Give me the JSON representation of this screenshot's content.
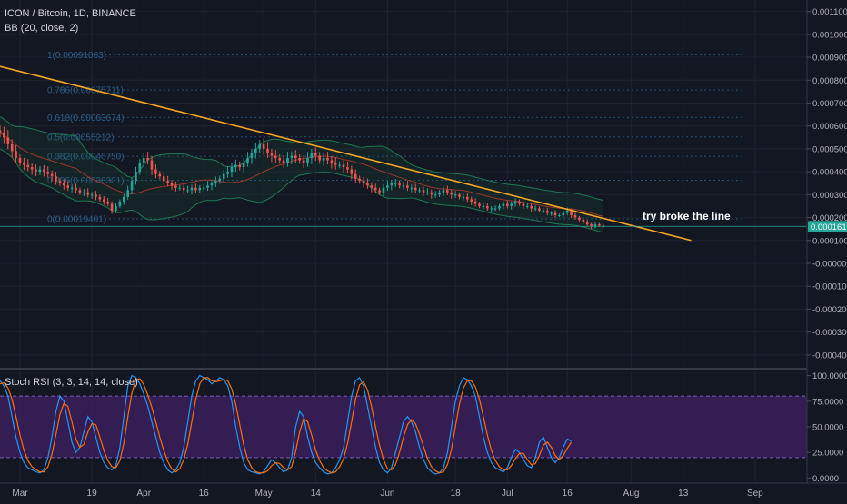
{
  "header": {
    "symbol_title": "ICON / Bitcoin, 1D, BINANCE",
    "bb_indicator": "BB (20, close, 2)",
    "rsi_indicator": "Stoch RSI (3, 3, 14, 14, close)"
  },
  "annotation": "try broke the line",
  "colors": {
    "background": "#131722",
    "up_candle": "#26a69a",
    "down_candle": "#ef5350",
    "trendline": "#f5a623",
    "bb_band": "#1b7a4e",
    "bb_basis": "#c0392b",
    "rsi_k": "#2196f3",
    "rsi_d": "#ff6d00",
    "rsi_band_fill": "#3a1f5c",
    "price_line": "#26a69a"
  },
  "chart_data": [
    {
      "type": "candlestick",
      "title": "ICON / Bitcoin, 1D, BINANCE",
      "price_axis_ticks": [
        "0.0011000",
        "0.0010000",
        "0.0009000",
        "0.0008000",
        "0.0007000",
        "0.0006000",
        "0.0005000",
        "0.0004000",
        "0.0003000",
        "0.0002000",
        "0.0001000",
        "-0.0000000",
        "-0.0001000",
        "-0.0002000",
        "-0.0003000",
        "-0.0004000"
      ],
      "price_axis_values": [
        0.0011,
        0.001,
        0.0009,
        0.0008,
        0.0007,
        0.0006,
        0.0005,
        0.0004,
        0.0003,
        0.0002,
        0.0001,
        0,
        -0.0001,
        -0.0002,
        -0.0003,
        -0.0004
      ],
      "ylim": [
        -0.00046,
        0.00115
      ],
      "current_price": "0.0001615",
      "current_price_value": 0.0001615,
      "date_ticks": [
        "Mar",
        "19",
        "Apr",
        "16",
        "May",
        "14",
        "Jun",
        "18",
        "Jul",
        "16",
        "Aug",
        "13",
        "Sep"
      ],
      "date_tick_days": [
        0,
        18,
        31,
        46,
        61,
        74,
        92,
        109,
        122,
        137,
        153,
        166,
        184
      ],
      "xlim_days": [
        -5,
        197
      ],
      "fib_levels": [
        {
          "label": "1(0.00091063)",
          "value": 0.00091063
        },
        {
          "label": "0.786(0.00075711)",
          "value": 0.00075711
        },
        {
          "label": "0.618(0.00063674)",
          "value": 0.00063674
        },
        {
          "label": "0.5(0.00055212)",
          "value": 0.00055212
        },
        {
          "label": "0.382(0.00046750)",
          "value": 0.0004675
        },
        {
          "label": "0.236(0.00036301)",
          "value": 0.00036301
        },
        {
          "label": "0(0.00019401)",
          "value": 0.00019401
        }
      ],
      "trendline": {
        "start_day": -5,
        "start_value": 0.00086,
        "end_day": 168,
        "end_value": 0.0001
      },
      "close_series": {
        "start_day": -5,
        "values": [
          0.00057,
          0.00055,
          0.00052,
          0.00049,
          0.00046,
          0.00044,
          0.00043,
          0.00042,
          0.00041,
          0.0004,
          0.00041,
          0.0004,
          0.00039,
          0.00038,
          0.00036,
          0.00035,
          0.00034,
          0.00033,
          0.00033,
          0.00032,
          0.00031,
          0.00031,
          0.0003,
          0.0003,
          0.00029,
          0.00028,
          0.00027,
          0.00026,
          0.00023,
          0.00025,
          0.00027,
          0.00029,
          0.00032,
          0.00036,
          0.0004,
          0.00044,
          0.00046,
          0.00045,
          0.00041,
          0.00039,
          0.00038,
          0.00036,
          0.00035,
          0.00034,
          0.00033,
          0.00033,
          0.00032,
          0.00032,
          0.00033,
          0.00032,
          0.00033,
          0.00033,
          0.00034,
          0.00035,
          0.00036,
          0.00037,
          0.00039,
          0.0004,
          0.00042,
          0.00043,
          0.00042,
          0.00044,
          0.00046,
          0.00048,
          0.0005,
          0.00052,
          0.0005,
          0.00048,
          0.00047,
          0.00046,
          0.00045,
          0.00044,
          0.00046,
          0.00047,
          0.00046,
          0.00045,
          0.00044,
          0.00046,
          0.00048,
          0.00047,
          0.00045,
          0.00046,
          0.00045,
          0.00044,
          0.00043,
          0.00043,
          0.00042,
          0.00041,
          0.00039,
          0.00037,
          0.00036,
          0.00035,
          0.00034,
          0.00033,
          0.00032,
          0.00031,
          0.00033,
          0.00034,
          0.00035,
          0.00035,
          0.00034,
          0.00034,
          0.00033,
          0.00033,
          0.00032,
          0.00032,
          0.00031,
          0.00031,
          0.0003,
          0.0003,
          0.00031,
          0.00032,
          0.00031,
          0.0003,
          0.0003,
          0.00029,
          0.00029,
          0.00028,
          0.00027,
          0.00026,
          0.00025,
          0.00025,
          0.00024,
          0.00024,
          0.00024,
          0.00025,
          0.00026,
          0.00025,
          0.00026,
          0.00027,
          0.00026,
          0.00025,
          0.00025,
          0.00024,
          0.00024,
          0.00023,
          0.00023,
          0.00022,
          0.00022,
          0.00021,
          0.00021,
          0.00022,
          0.00023,
          0.00021,
          0.0002,
          0.00019,
          0.00018,
          0.00017,
          0.00016,
          0.00017,
          0.000165,
          0.000162
        ]
      }
    },
    {
      "type": "line",
      "title": "Stoch RSI (3, 3, 14, 14, close)",
      "rsi_ticks": [
        "100.0000",
        "75.0000",
        "50.0000",
        "25.0000",
        "0.0000"
      ],
      "rsi_tick_values": [
        100,
        75,
        50,
        25,
        0
      ],
      "ylim": [
        -5,
        105
      ],
      "upper_band": 80,
      "lower_band": 20,
      "k_series": {
        "start_day": -5,
        "values": [
          95,
          90,
          80,
          60,
          40,
          25,
          15,
          10,
          8,
          6,
          5,
          8,
          20,
          40,
          65,
          80,
          75,
          55,
          35,
          25,
          30,
          45,
          60,
          55,
          40,
          25,
          15,
          10,
          8,
          12,
          30,
          60,
          90,
          100,
          98,
          92,
          82,
          70,
          55,
          40,
          25,
          15,
          8,
          5,
          8,
          15,
          30,
          55,
          80,
          95,
          100,
          98,
          96,
          92,
          95,
          98,
          96,
          90,
          75,
          50,
          30,
          15,
          8,
          6,
          5,
          4,
          6,
          12,
          18,
          15,
          10,
          6,
          8,
          20,
          50,
          65,
          60,
          40,
          25,
          15,
          10,
          6,
          4,
          5,
          10,
          18,
          30,
          55,
          80,
          95,
          98,
          90,
          70,
          50,
          30,
          15,
          8,
          5,
          10,
          25,
          40,
          55,
          60,
          55,
          45,
          30,
          18,
          10,
          6,
          4,
          5,
          10,
          25,
          50,
          75,
          90,
          98,
          96,
          90,
          80,
          60,
          40,
          25,
          15,
          10,
          8,
          6,
          10,
          20,
          28,
          25,
          18,
          12,
          10,
          20,
          35,
          40,
          30,
          20,
          15,
          20,
          30,
          38,
          36
        ]
      },
      "d_series": {
        "start_day": -5,
        "values": [
          92,
          93,
          88,
          77,
          60,
          42,
          27,
          17,
          11,
          8,
          6,
          6,
          11,
          23,
          42,
          62,
          73,
          70,
          55,
          38,
          30,
          33,
          45,
          53,
          52,
          40,
          27,
          17,
          11,
          10,
          17,
          34,
          60,
          83,
          96,
          97,
          91,
          81,
          69,
          55,
          40,
          27,
          16,
          9,
          6,
          9,
          18,
          33,
          55,
          77,
          92,
          98,
          98,
          95,
          94,
          95,
          96,
          95,
          87,
          72,
          52,
          32,
          18,
          10,
          6,
          5,
          5,
          7,
          12,
          15,
          14,
          10,
          8,
          11,
          26,
          45,
          58,
          55,
          42,
          27,
          17,
          10,
          7,
          5,
          6,
          11,
          19,
          34,
          55,
          77,
          91,
          94,
          86,
          70,
          50,
          32,
          18,
          9,
          8,
          13,
          25,
          40,
          52,
          57,
          53,
          43,
          31,
          19,
          11,
          7,
          5,
          6,
          13,
          28,
          50,
          72,
          88,
          95,
          95,
          89,
          77,
          60,
          42,
          27,
          17,
          11,
          8,
          8,
          12,
          19,
          24,
          24,
          18,
          13,
          14,
          22,
          32,
          35,
          30,
          22,
          18,
          22,
          29,
          35
        ]
      }
    }
  ]
}
